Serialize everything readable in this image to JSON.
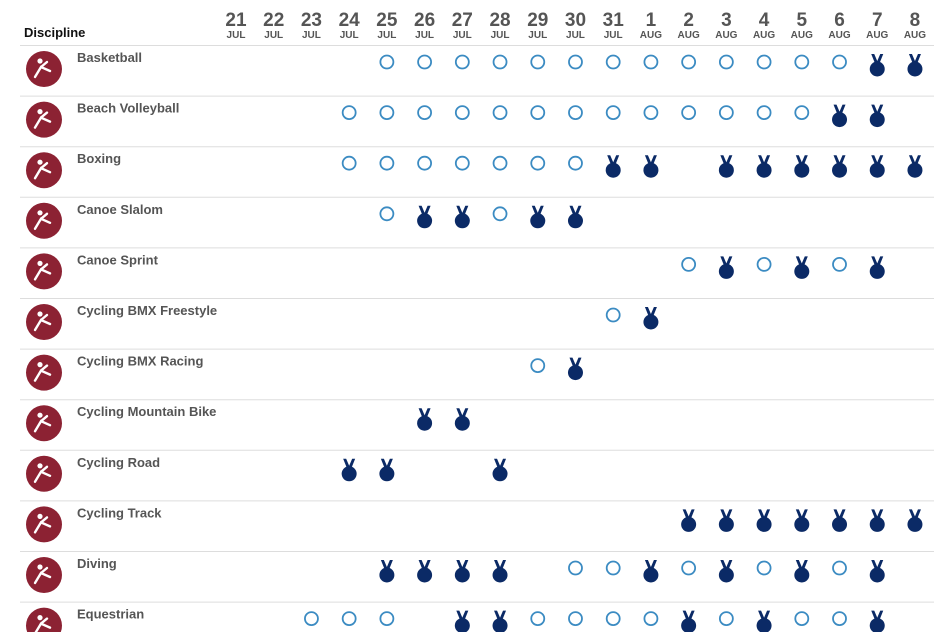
{
  "header": {
    "discipline": "Discipline",
    "dates": [
      {
        "day": "21",
        "month": "JUL"
      },
      {
        "day": "22",
        "month": "JUL"
      },
      {
        "day": "23",
        "month": "JUL"
      },
      {
        "day": "24",
        "month": "JUL"
      },
      {
        "day": "25",
        "month": "JUL"
      },
      {
        "day": "26",
        "month": "JUL"
      },
      {
        "day": "27",
        "month": "JUL"
      },
      {
        "day": "28",
        "month": "JUL"
      },
      {
        "day": "29",
        "month": "JUL"
      },
      {
        "day": "30",
        "month": "JUL"
      },
      {
        "day": "31",
        "month": "JUL"
      },
      {
        "day": "1",
        "month": "AUG"
      },
      {
        "day": "2",
        "month": "AUG"
      },
      {
        "day": "3",
        "month": "AUG"
      },
      {
        "day": "4",
        "month": "AUG"
      },
      {
        "day": "5",
        "month": "AUG"
      },
      {
        "day": "6",
        "month": "AUG"
      },
      {
        "day": "7",
        "month": "AUG"
      },
      {
        "day": "8",
        "month": "AUG"
      }
    ]
  },
  "table": {
    "rows": [
      {
        "name": "Basketball",
        "schedule": [
          null,
          null,
          null,
          null,
          "event",
          "event",
          "event",
          "event",
          "event",
          "event",
          "event",
          "event",
          "event",
          "event",
          "event",
          "event",
          "event",
          "medal",
          "medal"
        ]
      },
      {
        "name": "Beach Volleyball",
        "schedule": [
          null,
          null,
          null,
          "event",
          "event",
          "event",
          "event",
          "event",
          "event",
          "event",
          "event",
          "event",
          "event",
          "event",
          "event",
          "event",
          "medal",
          "medal",
          null
        ]
      },
      {
        "name": "Boxing",
        "schedule": [
          null,
          null,
          null,
          "event",
          "event",
          "event",
          "event",
          "event",
          "event",
          "event",
          "medal",
          "medal",
          null,
          "medal",
          "medal",
          "medal",
          "medal",
          "medal",
          "medal"
        ]
      },
      {
        "name": "Canoe Slalom",
        "schedule": [
          null,
          null,
          null,
          null,
          "event",
          "medal",
          "medal",
          "event",
          "medal",
          "medal",
          null,
          null,
          null,
          null,
          null,
          null,
          null,
          null,
          null
        ]
      },
      {
        "name": "Canoe Sprint",
        "schedule": [
          null,
          null,
          null,
          null,
          null,
          null,
          null,
          null,
          null,
          null,
          null,
          null,
          "event",
          "medal",
          "event",
          "medal",
          "event",
          "medal",
          null
        ]
      },
      {
        "name": "Cycling BMX Freestyle",
        "schedule": [
          null,
          null,
          null,
          null,
          null,
          null,
          null,
          null,
          null,
          null,
          "event",
          "medal",
          null,
          null,
          null,
          null,
          null,
          null,
          null
        ]
      },
      {
        "name": "Cycling BMX Racing",
        "schedule": [
          null,
          null,
          null,
          null,
          null,
          null,
          null,
          null,
          "event",
          "medal",
          null,
          null,
          null,
          null,
          null,
          null,
          null,
          null,
          null
        ]
      },
      {
        "name": "Cycling Mountain Bike",
        "schedule": [
          null,
          null,
          null,
          null,
          null,
          "medal",
          "medal",
          null,
          null,
          null,
          null,
          null,
          null,
          null,
          null,
          null,
          null,
          null,
          null
        ]
      },
      {
        "name": "Cycling Road",
        "schedule": [
          null,
          null,
          null,
          "medal",
          "medal",
          null,
          null,
          "medal",
          null,
          null,
          null,
          null,
          null,
          null,
          null,
          null,
          null,
          null,
          null
        ]
      },
      {
        "name": "Cycling Track",
        "schedule": [
          null,
          null,
          null,
          null,
          null,
          null,
          null,
          null,
          null,
          null,
          null,
          null,
          "medal",
          "medal",
          "medal",
          "medal",
          "medal",
          "medal",
          "medal"
        ]
      },
      {
        "name": "Diving",
        "schedule": [
          null,
          null,
          null,
          null,
          "medal",
          "medal",
          "medal",
          "medal",
          null,
          "event",
          "event",
          "medal",
          "event",
          "medal",
          "event",
          "medal",
          "event",
          "medal",
          null
        ]
      },
      {
        "name": "Equestrian",
        "schedule": [
          null,
          null,
          "event",
          "event",
          "event",
          null,
          "medal",
          "medal",
          "event",
          "event",
          "event",
          "event",
          "medal",
          "event",
          "medal",
          "event",
          "event",
          "medal",
          null
        ]
      }
    ]
  }
}
